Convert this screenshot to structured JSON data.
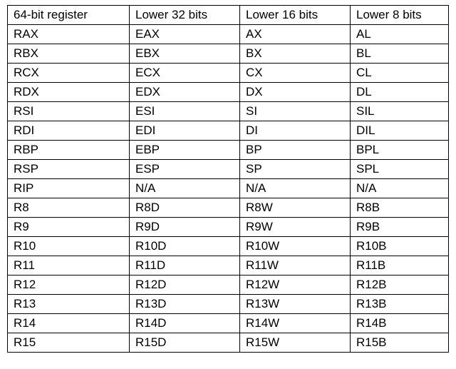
{
  "table": {
    "headers": [
      "64-bit register",
      "Lower 32 bits",
      "Lower 16 bits",
      "Lower 8 bits"
    ],
    "rows": [
      [
        "RAX",
        "EAX",
        "AX",
        "AL"
      ],
      [
        "RBX",
        "EBX",
        "BX",
        "BL"
      ],
      [
        "RCX",
        "ECX",
        "CX",
        "CL"
      ],
      [
        "RDX",
        "EDX",
        "DX",
        "DL"
      ],
      [
        "RSI",
        "ESI",
        "SI",
        "SIL"
      ],
      [
        "RDI",
        "EDI",
        "DI",
        "DIL"
      ],
      [
        "RBP",
        "EBP",
        "BP",
        "BPL"
      ],
      [
        "RSP",
        "ESP",
        "SP",
        "SPL"
      ],
      [
        "RIP",
        "N/A",
        "N/A",
        "N/A"
      ],
      [
        "R8",
        "R8D",
        "R8W",
        "R8B"
      ],
      [
        "R9",
        "R9D",
        "R9W",
        "R9B"
      ],
      [
        "R10",
        "R10D",
        "R10W",
        "R10B"
      ],
      [
        "R11",
        "R11D",
        "R11W",
        "R11B"
      ],
      [
        "R12",
        "R12D",
        "R12W",
        "R12B"
      ],
      [
        "R13",
        "R13D",
        "R13W",
        "R13B"
      ],
      [
        "R14",
        "R14D",
        "R14W",
        "R14B"
      ],
      [
        "R15",
        "R15D",
        "R15W",
        "R15B"
      ]
    ]
  }
}
